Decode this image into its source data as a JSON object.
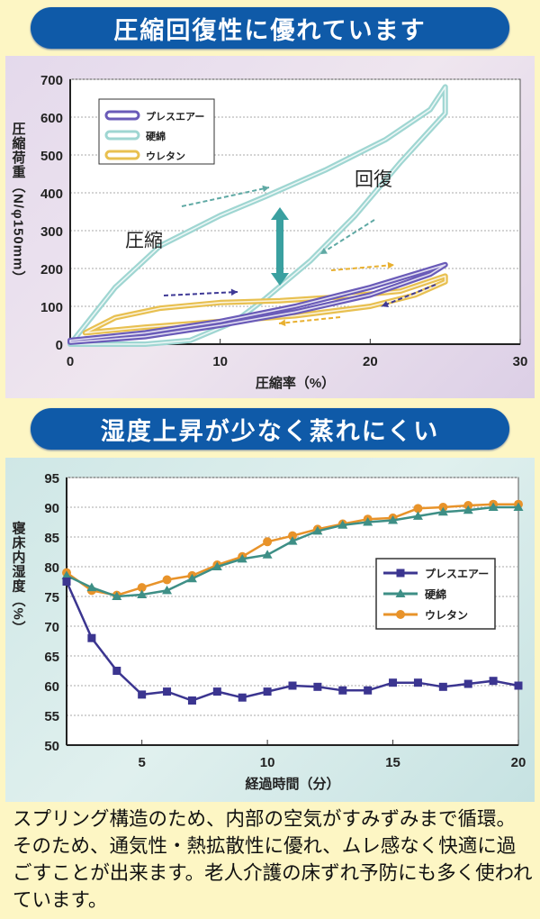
{
  "banners": {
    "top": "圧縮回復性に優れています",
    "bottom": "湿度上昇が少なく蒸れにくい"
  },
  "description": "スプリング構造のため、内部の空気がすみずみまで循環。そのため、通気性・熱拡散性に優れ、ムレ感なく快適に過ごすことが出来ます。老人介護の床ずれ予防にも多く使われています。",
  "chart_data": [
    {
      "type": "line",
      "title": "",
      "xlabel": "圧縮率（%）",
      "ylabel": "圧縮荷重（N/φ150mm）",
      "xlim": [
        0,
        30
      ],
      "ylim": [
        0,
        700
      ],
      "xticks": [
        0,
        10,
        20,
        30
      ],
      "yticks": [
        0,
        100,
        200,
        300,
        400,
        500,
        600,
        700
      ],
      "grid": true,
      "legend_position": "top-left",
      "annotations": {
        "compress": "圧縮",
        "recover": "回復"
      },
      "series": [
        {
          "name": "プレスエアー",
          "color": "#6a5bb8",
          "points": [
            [
              0,
              10
            ],
            [
              5,
              30
            ],
            [
              10,
              60
            ],
            [
              15,
              100
            ],
            [
              20,
              150
            ],
            [
              25,
              210
            ],
            [
              24,
              185
            ],
            [
              20,
              130
            ],
            [
              15,
              85
            ],
            [
              10,
              50
            ],
            [
              5,
              20
            ],
            [
              0,
              5
            ]
          ]
        },
        {
          "name": "硬綿",
          "color": "#9fd6d2",
          "points": [
            [
              0,
              0
            ],
            [
              1,
              50
            ],
            [
              3,
              150
            ],
            [
              6,
              260
            ],
            [
              10,
              340
            ],
            [
              13,
              390
            ],
            [
              17,
              460
            ],
            [
              21,
              540
            ],
            [
              24,
              620
            ],
            [
              25,
              680
            ],
            [
              25,
              610
            ],
            [
              22,
              480
            ],
            [
              19,
              340
            ],
            [
              16,
              220
            ],
            [
              13,
              120
            ],
            [
              11,
              60
            ],
            [
              8,
              10
            ],
            [
              5,
              0
            ]
          ]
        },
        {
          "name": "ウレタン",
          "color": "#e8c050",
          "points": [
            [
              1,
              30
            ],
            [
              3,
              70
            ],
            [
              6,
              95
            ],
            [
              10,
              110
            ],
            [
              14,
              115
            ],
            [
              18,
              125
            ],
            [
              22,
              140
            ],
            [
              25,
              180
            ],
            [
              25,
              165
            ],
            [
              23,
              130
            ],
            [
              20,
              100
            ],
            [
              15,
              75
            ],
            [
              10,
              60
            ],
            [
              5,
              45
            ],
            [
              1,
              30
            ]
          ]
        }
      ]
    },
    {
      "type": "line",
      "title": "",
      "xlabel": "経過時間（分）",
      "ylabel": "寝床内湿度（%）",
      "xlim": [
        2,
        20
      ],
      "ylim": [
        50,
        95
      ],
      "xticks": [
        5,
        10,
        15,
        20
      ],
      "yticks": [
        50,
        55,
        60,
        65,
        70,
        75,
        80,
        85,
        90,
        95
      ],
      "grid": true,
      "legend_position": "right",
      "x": [
        2,
        3,
        4,
        5,
        6,
        7,
        8,
        9,
        10,
        11,
        12,
        13,
        14,
        15,
        16,
        17,
        18,
        19,
        20
      ],
      "series": [
        {
          "name": "プレスエアー",
          "color": "#3b3590",
          "marker": "square",
          "values": [
            77.5,
            68,
            62.5,
            58.5,
            59,
            57.5,
            59,
            58,
            59,
            60,
            59.8,
            59.2,
            59.2,
            60.5,
            60.5,
            59.8,
            60.3,
            60.8,
            60
          ]
        },
        {
          "name": "硬綿",
          "color": "#3e8f86",
          "marker": "triangle",
          "values": [
            78.5,
            76.5,
            75,
            75.3,
            76,
            78,
            80,
            81.3,
            82,
            84.3,
            86,
            87,
            87.5,
            87.8,
            88.5,
            89.2,
            89.5,
            90,
            90
          ]
        },
        {
          "name": "ウレタン",
          "color": "#e8932a",
          "marker": "circle",
          "values": [
            79,
            76,
            75.2,
            76.5,
            77.8,
            78.5,
            80.3,
            81.7,
            84.2,
            85.2,
            86.3,
            87.2,
            88,
            88.2,
            89.8,
            90,
            90.3,
            90.5,
            90.5
          ]
        }
      ]
    }
  ]
}
